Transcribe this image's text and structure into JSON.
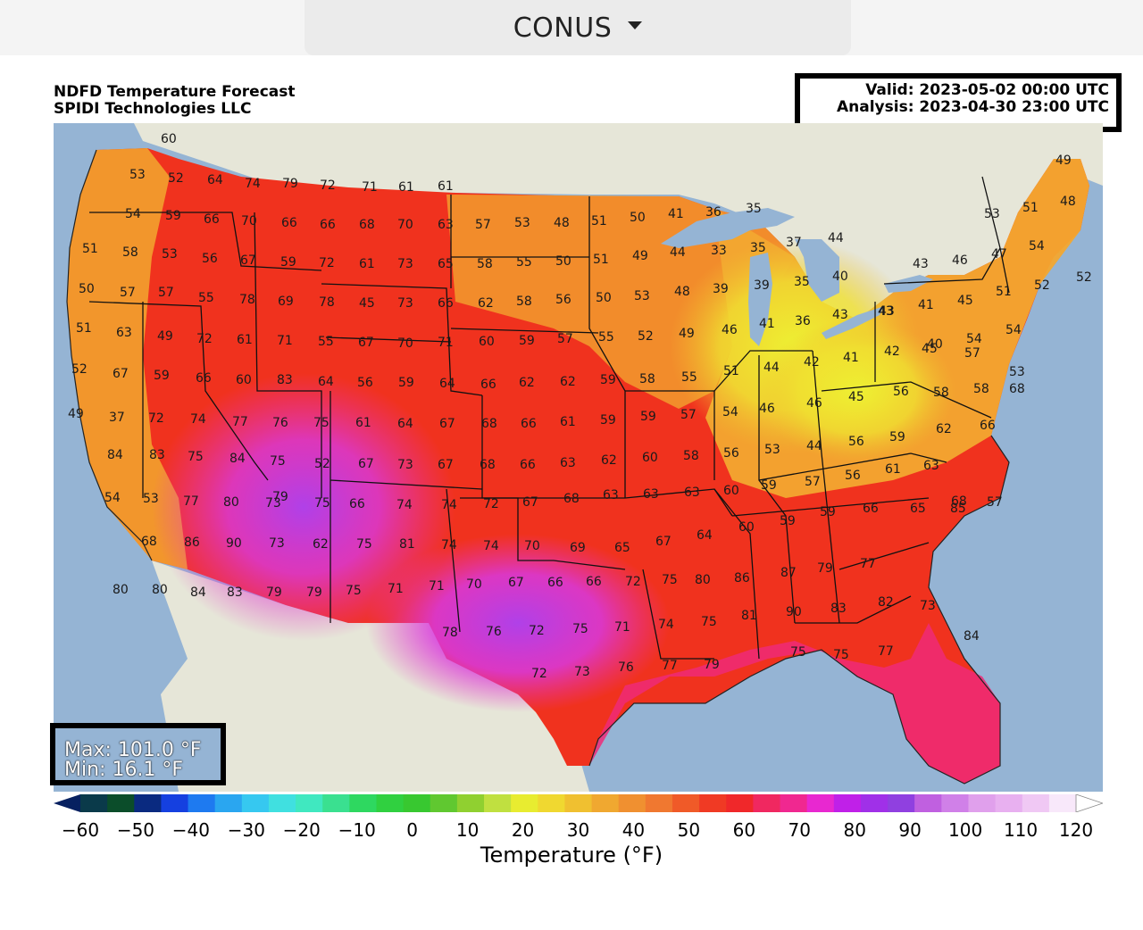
{
  "region_selector": {
    "label": "CONUS"
  },
  "titles": {
    "product": "NDFD Temperature Forecast",
    "company": "SPIDI Technologies LLC"
  },
  "info": {
    "valid": "Valid: 2023-05-02 00:00 UTC",
    "analysis": "Analysis: 2023-04-30 23:00 UTC"
  },
  "stats": {
    "max": "Max: 101.0 °F",
    "min": "Min: 16.1 °F"
  },
  "colorbar": {
    "label": "Temperature (°F)",
    "ticks": [
      "−60",
      "−50",
      "−40",
      "−30",
      "−20",
      "−10",
      "0",
      "10",
      "20",
      "30",
      "40",
      "50",
      "60",
      "70",
      "80",
      "90",
      "100",
      "110",
      "120"
    ],
    "colors": [
      "#062060",
      "#0a3a4a",
      "#0b4d2a",
      "#0a2a80",
      "#1540e0",
      "#1e7af0",
      "#2aa6f0",
      "#36c8f0",
      "#40e0e0",
      "#40e8c0",
      "#3ae090",
      "#2ed860",
      "#30d040",
      "#38c830",
      "#60c830",
      "#90d030",
      "#c0e040",
      "#e8ec30",
      "#f0d830",
      "#f0c030",
      "#f0a830",
      "#f09030",
      "#f07830",
      "#f05a28",
      "#f03a24",
      "#f0282a",
      "#f02860",
      "#f02890",
      "#e828d0",
      "#c020e8",
      "#a030e8",
      "#9040e0",
      "#c060e0",
      "#d080e8",
      "#e0a0ec",
      "#e8b0f0",
      "#f0c8f4",
      "#f8e8fa",
      "#ffffff"
    ],
    "min": -60,
    "max": 120
  },
  "colors": {
    "ocean": "#95b4d4",
    "land_outside": "#e6e6d8",
    "warm": "#f0321e",
    "hot": "#e830c8"
  },
  "temps": [
    {
      "t": "60"
    },
    {
      "t": "53"
    },
    {
      "t": "52"
    },
    {
      "t": "64"
    },
    {
      "t": "74"
    },
    {
      "t": "79"
    },
    {
      "t": "72"
    },
    {
      "t": "71"
    },
    {
      "t": "61"
    },
    {
      "t": "61"
    },
    {
      "t": "54"
    },
    {
      "t": "59"
    },
    {
      "t": "66"
    },
    {
      "t": "70"
    },
    {
      "t": "66"
    },
    {
      "t": "66"
    },
    {
      "t": "68"
    },
    {
      "t": "70"
    },
    {
      "t": "63"
    },
    {
      "t": "57"
    },
    {
      "t": "53"
    },
    {
      "t": "48"
    },
    {
      "t": "51"
    },
    {
      "t": "50"
    },
    {
      "t": "41"
    },
    {
      "t": "36"
    },
    {
      "t": "35"
    },
    {
      "t": "49"
    },
    {
      "t": "53"
    },
    {
      "t": "51"
    },
    {
      "t": "48"
    },
    {
      "t": "51"
    },
    {
      "t": "58"
    },
    {
      "t": "53"
    },
    {
      "t": "56"
    },
    {
      "t": "67"
    },
    {
      "t": "59"
    },
    {
      "t": "72"
    },
    {
      "t": "61"
    },
    {
      "t": "73"
    },
    {
      "t": "65"
    },
    {
      "t": "58"
    },
    {
      "t": "55"
    },
    {
      "t": "50"
    },
    {
      "t": "51"
    },
    {
      "t": "49"
    },
    {
      "t": "44"
    },
    {
      "t": "33"
    },
    {
      "t": "35"
    },
    {
      "t": "37"
    },
    {
      "t": "44"
    },
    {
      "t": "43"
    },
    {
      "t": "46"
    },
    {
      "t": "47"
    },
    {
      "t": "54"
    },
    {
      "t": "50"
    },
    {
      "t": "57"
    },
    {
      "t": "57"
    },
    {
      "t": "55"
    },
    {
      "t": "78"
    },
    {
      "t": "69"
    },
    {
      "t": "78"
    },
    {
      "t": "45"
    },
    {
      "t": "73"
    },
    {
      "t": "66"
    },
    {
      "t": "62"
    },
    {
      "t": "58"
    },
    {
      "t": "56"
    },
    {
      "t": "50"
    },
    {
      "t": "53"
    },
    {
      "t": "48"
    },
    {
      "t": "39"
    },
    {
      "t": "39"
    },
    {
      "t": "35"
    },
    {
      "t": "40"
    },
    {
      "t": "43"
    },
    {
      "t": "41"
    },
    {
      "t": "45"
    },
    {
      "t": "51"
    },
    {
      "t": "52"
    },
    {
      "t": "52"
    },
    {
      "t": "51"
    },
    {
      "t": "63"
    },
    {
      "t": "49"
    },
    {
      "t": "72"
    },
    {
      "t": "61"
    },
    {
      "t": "71"
    },
    {
      "t": "55"
    },
    {
      "t": "67"
    },
    {
      "t": "70"
    },
    {
      "t": "71"
    },
    {
      "t": "60"
    },
    {
      "t": "59"
    },
    {
      "t": "57"
    },
    {
      "t": "55"
    },
    {
      "t": "52"
    },
    {
      "t": "49"
    },
    {
      "t": "46"
    },
    {
      "t": "41"
    },
    {
      "t": "36"
    },
    {
      "t": "43"
    },
    {
      "t": "43"
    },
    {
      "t": "40"
    },
    {
      "t": "54"
    },
    {
      "t": "54"
    },
    {
      "t": "52"
    },
    {
      "t": "67"
    },
    {
      "t": "59"
    },
    {
      "t": "66"
    },
    {
      "t": "60"
    },
    {
      "t": "83"
    },
    {
      "t": "64"
    },
    {
      "t": "56"
    },
    {
      "t": "59"
    },
    {
      "t": "64"
    },
    {
      "t": "66"
    },
    {
      "t": "62"
    },
    {
      "t": "62"
    },
    {
      "t": "59"
    },
    {
      "t": "58"
    },
    {
      "t": "55"
    },
    {
      "t": "51"
    },
    {
      "t": "44"
    },
    {
      "t": "42"
    },
    {
      "t": "41"
    },
    {
      "t": "42"
    },
    {
      "t": "45"
    },
    {
      "t": "57"
    },
    {
      "t": "53"
    },
    {
      "t": "49"
    },
    {
      "t": "37"
    },
    {
      "t": "72"
    },
    {
      "t": "74"
    },
    {
      "t": "77"
    },
    {
      "t": "76"
    },
    {
      "t": "75"
    },
    {
      "t": "61"
    },
    {
      "t": "64"
    },
    {
      "t": "67"
    },
    {
      "t": "68"
    },
    {
      "t": "66"
    },
    {
      "t": "61"
    },
    {
      "t": "59"
    },
    {
      "t": "59"
    },
    {
      "t": "57"
    },
    {
      "t": "54"
    },
    {
      "t": "46"
    },
    {
      "t": "46"
    },
    {
      "t": "45"
    },
    {
      "t": "56"
    },
    {
      "t": "58"
    },
    {
      "t": "58"
    },
    {
      "t": "68"
    },
    {
      "t": "84"
    },
    {
      "t": "83"
    },
    {
      "t": "75"
    },
    {
      "t": "84"
    },
    {
      "t": "75"
    },
    {
      "t": "52"
    },
    {
      "t": "67"
    },
    {
      "t": "73"
    },
    {
      "t": "67"
    },
    {
      "t": "68"
    },
    {
      "t": "66"
    },
    {
      "t": "63"
    },
    {
      "t": "62"
    },
    {
      "t": "60"
    },
    {
      "t": "58"
    },
    {
      "t": "56"
    },
    {
      "t": "53"
    },
    {
      "t": "44"
    },
    {
      "t": "56"
    },
    {
      "t": "59"
    },
    {
      "t": "62"
    },
    {
      "t": "66"
    },
    {
      "t": "54"
    },
    {
      "t": "53"
    },
    {
      "t": "77"
    },
    {
      "t": "80"
    },
    {
      "t": "73"
    },
    {
      "t": "79"
    },
    {
      "t": "75"
    },
    {
      "t": "66"
    },
    {
      "t": "74"
    },
    {
      "t": "74"
    },
    {
      "t": "72"
    },
    {
      "t": "67"
    },
    {
      "t": "68"
    },
    {
      "t": "63"
    },
    {
      "t": "63"
    },
    {
      "t": "63"
    },
    {
      "t": "60"
    },
    {
      "t": "59"
    },
    {
      "t": "57"
    },
    {
      "t": "56"
    },
    {
      "t": "61"
    },
    {
      "t": "63"
    },
    {
      "t": "68"
    },
    {
      "t": "57"
    },
    {
      "t": "68"
    },
    {
      "t": "86"
    },
    {
      "t": "90"
    },
    {
      "t": "73"
    },
    {
      "t": "62"
    },
    {
      "t": "75"
    },
    {
      "t": "81"
    },
    {
      "t": "74"
    },
    {
      "t": "74"
    },
    {
      "t": "70"
    },
    {
      "t": "69"
    },
    {
      "t": "65"
    },
    {
      "t": "67"
    },
    {
      "t": "64"
    },
    {
      "t": "60"
    },
    {
      "t": "59"
    },
    {
      "t": "59"
    },
    {
      "t": "66"
    },
    {
      "t": "65"
    },
    {
      "t": "85"
    },
    {
      "t": "80"
    },
    {
      "t": "80"
    },
    {
      "t": "84"
    },
    {
      "t": "83"
    },
    {
      "t": "79"
    },
    {
      "t": "79"
    },
    {
      "t": "75"
    },
    {
      "t": "71"
    },
    {
      "t": "71"
    },
    {
      "t": "70"
    },
    {
      "t": "67"
    },
    {
      "t": "66"
    },
    {
      "t": "66"
    },
    {
      "t": "72"
    },
    {
      "t": "75"
    },
    {
      "t": "80"
    },
    {
      "t": "86"
    },
    {
      "t": "87"
    },
    {
      "t": "79"
    },
    {
      "t": "77"
    },
    {
      "t": "78"
    },
    {
      "t": "76"
    },
    {
      "t": "72"
    },
    {
      "t": "75"
    },
    {
      "t": "71"
    },
    {
      "t": "74"
    },
    {
      "t": "75"
    },
    {
      "t": "81"
    },
    {
      "t": "90"
    },
    {
      "t": "83"
    },
    {
      "t": "82"
    },
    {
      "t": "73"
    },
    {
      "t": "84"
    },
    {
      "t": "72"
    },
    {
      "t": "73"
    },
    {
      "t": "76"
    },
    {
      "t": "77"
    },
    {
      "t": "79"
    },
    {
      "t": "75"
    },
    {
      "t": "75"
    },
    {
      "t": "77"
    }
  ]
}
